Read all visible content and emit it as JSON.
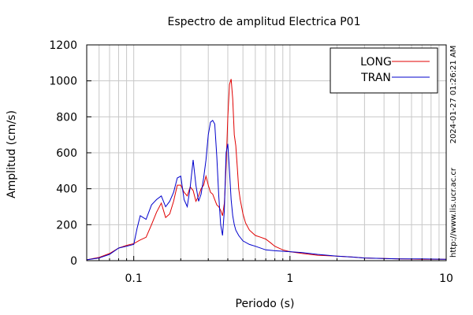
{
  "chart_data": {
    "type": "line",
    "title": "Espectro de amplitud Electrica P01",
    "xlabel": "Periodo (s)",
    "ylabel": "Amplitud (cm/s)",
    "x_scale": "log",
    "xlim": [
      0.05,
      10
    ],
    "ylim": [
      0,
      1200
    ],
    "x_ticks": [
      {
        "value": 0.1,
        "label": "0.1"
      },
      {
        "value": 1,
        "label": "1"
      },
      {
        "value": 10,
        "label": "10"
      }
    ],
    "y_ticks": [
      {
        "value": 0,
        "label": "0"
      },
      {
        "value": 200,
        "label": "200"
      },
      {
        "value": 400,
        "label": "400"
      },
      {
        "value": 600,
        "label": "600"
      },
      {
        "value": 800,
        "label": "800"
      },
      {
        "value": 1000,
        "label": "1000"
      },
      {
        "value": 1200,
        "label": "1200"
      }
    ],
    "grid": true,
    "legend_position": "top-right",
    "series": [
      {
        "name": "LONG",
        "color": "#e00000",
        "x": [
          0.05,
          0.06,
          0.07,
          0.08,
          0.09,
          0.1,
          0.11,
          0.12,
          0.13,
          0.14,
          0.15,
          0.16,
          0.17,
          0.18,
          0.19,
          0.2,
          0.21,
          0.22,
          0.23,
          0.24,
          0.25,
          0.26,
          0.27,
          0.28,
          0.29,
          0.3,
          0.31,
          0.32,
          0.33,
          0.34,
          0.35,
          0.36,
          0.37,
          0.38,
          0.39,
          0.4,
          0.41,
          0.42,
          0.43,
          0.44,
          0.45,
          0.46,
          0.47,
          0.48,
          0.5,
          0.52,
          0.55,
          0.6,
          0.65,
          0.7,
          0.75,
          0.8,
          0.9,
          1.0,
          1.2,
          1.5,
          2.0,
          2.5,
          3.0,
          4.0,
          5.0,
          7.0,
          10.0
        ],
        "y": [
          5,
          18,
          40,
          70,
          85,
          95,
          115,
          130,
          200,
          270,
          320,
          240,
          260,
          330,
          420,
          420,
          380,
          360,
          410,
          390,
          330,
          360,
          400,
          420,
          470,
          420,
          380,
          370,
          340,
          310,
          300,
          280,
          250,
          320,
          520,
          800,
          980,
          1010,
          900,
          700,
          640,
          520,
          400,
          340,
          260,
          210,
          170,
          140,
          130,
          120,
          100,
          80,
          60,
          50,
          40,
          30,
          25,
          20,
          15,
          12,
          10,
          8,
          8
        ]
      },
      {
        "name": "TRAN",
        "color": "#0000cc",
        "x": [
          0.05,
          0.06,
          0.07,
          0.08,
          0.09,
          0.1,
          0.105,
          0.11,
          0.12,
          0.13,
          0.14,
          0.15,
          0.16,
          0.17,
          0.18,
          0.19,
          0.2,
          0.21,
          0.22,
          0.23,
          0.24,
          0.25,
          0.26,
          0.27,
          0.28,
          0.29,
          0.3,
          0.31,
          0.32,
          0.33,
          0.34,
          0.35,
          0.36,
          0.37,
          0.38,
          0.39,
          0.4,
          0.41,
          0.42,
          0.43,
          0.44,
          0.45,
          0.47,
          0.5,
          0.55,
          0.6,
          0.7,
          0.8,
          1.0,
          1.2,
          1.5,
          2.0,
          2.5,
          3.0,
          4.0,
          5.0,
          7.0,
          10.0
        ],
        "y": [
          5,
          15,
          35,
          70,
          80,
          90,
          180,
          250,
          230,
          310,
          340,
          360,
          300,
          330,
          380,
          460,
          470,
          340,
          300,
          410,
          560,
          420,
          330,
          370,
          460,
          560,
          700,
          770,
          780,
          760,
          580,
          360,
          200,
          140,
          280,
          600,
          650,
          500,
          340,
          250,
          200,
          170,
          140,
          110,
          90,
          80,
          60,
          55,
          50,
          45,
          35,
          25,
          20,
          15,
          12,
          10,
          10,
          8
        ]
      }
    ]
  },
  "side_text": {
    "timestamp": "2024-01-27 01:26:21 AM",
    "url": "http://www.lis.ucr.ac.cr"
  }
}
